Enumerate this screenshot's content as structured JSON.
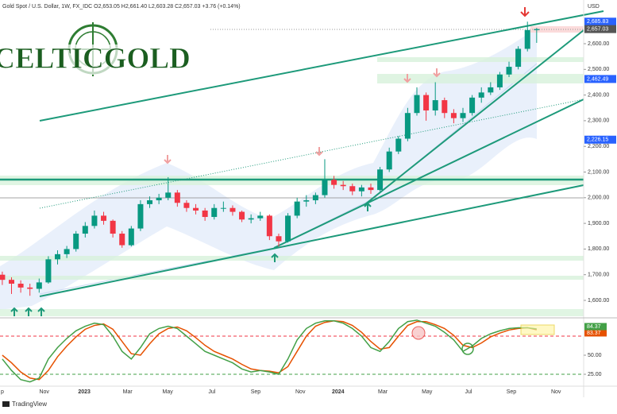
{
  "chart_data": {
    "type": "candlestick",
    "header": "Gold Spot / U.S. Dollar, 1W, FX_IDC  O2,653.05 H2,661.40 L2,603.28 C2,657.03 +3.76 (+0.14%)",
    "logo": "CELTICGOLD",
    "currency": "USD",
    "footer": "TradingView",
    "up_color": "#089981",
    "down_color": "#f23645",
    "x": [
      0,
      2,
      4,
      6,
      8,
      10,
      12,
      14,
      16,
      18,
      20,
      22,
      24,
      26,
      28,
      30,
      32,
      34,
      36,
      38,
      40,
      42,
      44,
      46,
      48,
      50,
      52,
      54,
      56,
      58,
      60,
      62,
      64,
      66,
      68,
      70,
      72,
      74,
      76,
      78,
      80,
      82,
      84,
      86,
      88,
      90,
      92,
      94,
      96,
      98,
      100,
      102,
      104,
      106,
      108,
      110,
      112,
      114,
      116
    ],
    "open": [
      1700,
      1680,
      1665,
      1650,
      1645,
      1670,
      1760,
      1780,
      1800,
      1860,
      1890,
      1930,
      1910,
      1860,
      1815,
      1880,
      1975,
      1990,
      2000,
      2020,
      1980,
      1960,
      1950,
      1925,
      1960,
      1960,
      1945,
      1915,
      1920,
      1930,
      1850,
      1830,
      1930,
      1985,
      1990,
      2010,
      2070,
      2050,
      2045,
      2025,
      2040,
      2030,
      2110,
      2180,
      2230,
      2330,
      2400,
      2340,
      2380,
      2330,
      2310,
      2330,
      2390,
      2410,
      2430,
      2480,
      2510,
      2580,
      2653.05
    ],
    "high": [
      1712,
      1690,
      1678,
      1665,
      1685,
      1772,
      1795,
      1812,
      1870,
      1905,
      1950,
      1945,
      1915,
      1870,
      1890,
      1990,
      2005,
      2015,
      2080,
      2030,
      1990,
      1975,
      1960,
      1975,
      1985,
      1970,
      1950,
      1935,
      1945,
      1935,
      1860,
      1940,
      2000,
      2010,
      2020,
      2150,
      2085,
      2065,
      2055,
      2050,
      2055,
      2120,
      2195,
      2240,
      2350,
      2430,
      2410,
      2450,
      2390,
      2345,
      2350,
      2400,
      2430,
      2450,
      2490,
      2530,
      2590,
      2685.83,
      2661.4
    ],
    "low": [
      1660,
      1625,
      1630,
      1618,
      1630,
      1665,
      1740,
      1765,
      1790,
      1845,
      1880,
      1895,
      1845,
      1805,
      1810,
      1870,
      1960,
      1975,
      1990,
      1965,
      1945,
      1935,
      1910,
      1915,
      1945,
      1930,
      1905,
      1900,
      1910,
      1835,
      1810,
      1825,
      1920,
      1965,
      1975,
      2000,
      2035,
      2030,
      2010,
      2005,
      2015,
      2025,
      2100,
      2170,
      2220,
      2320,
      2300,
      2320,
      2310,
      2290,
      2295,
      2320,
      2370,
      2400,
      2420,
      2470,
      2500,
      2570,
      2603.28
    ],
    "close": [
      1680,
      1665,
      1650,
      1645,
      1670,
      1760,
      1780,
      1800,
      1860,
      1890,
      1930,
      1910,
      1860,
      1815,
      1880,
      1975,
      1990,
      2000,
      2020,
      1980,
      1960,
      1950,
      1925,
      1960,
      1960,
      1945,
      1915,
      1920,
      1930,
      1850,
      1830,
      1930,
      1985,
      1990,
      2010,
      2070,
      2050,
      2045,
      2025,
      2040,
      2030,
      2110,
      2180,
      2230,
      2330,
      2400,
      2340,
      2380,
      2330,
      2310,
      2330,
      2390,
      2410,
      2430,
      2480,
      2510,
      2580,
      2653.27,
      2657.03
    ],
    "xlim": [
      -0.5,
      126.2
    ],
    "xticks": [
      {
        "value": 0,
        "label": "p"
      },
      {
        "value": 9.1,
        "label": "Nov"
      },
      {
        "value": 17.8,
        "label": "2023"
      },
      {
        "value": 27.2,
        "label": "Mar"
      },
      {
        "value": 35.9,
        "label": "May"
      },
      {
        "value": 45.5,
        "label": "Jul"
      },
      {
        "value": 55,
        "label": "Sep"
      },
      {
        "value": 64.7,
        "label": "Nov"
      },
      {
        "value": 72.9,
        "label": "2024"
      },
      {
        "value": 82.6,
        "label": "Mar"
      },
      {
        "value": 92.2,
        "label": "May"
      },
      {
        "value": 101.2,
        "label": "Jul"
      },
      {
        "value": 110.5,
        "label": "Sep"
      },
      {
        "value": 120.2,
        "label": "Nov"
      }
    ],
    "ylim": [
      1531.9,
      2770.3
    ],
    "yticks": [
      {
        "value": 1600,
        "label": "1,600.00"
      },
      {
        "value": 1700,
        "label": "1,700.00"
      },
      {
        "value": 1800,
        "label": "1,800.00"
      },
      {
        "value": 1900,
        "label": "1,900.00"
      },
      {
        "value": 2000,
        "label": "2,000.00"
      },
      {
        "value": 2100,
        "label": "2,100.00"
      },
      {
        "value": 2200,
        "label": "2,200.00"
      },
      {
        "value": 2300,
        "label": "2,300.00"
      },
      {
        "value": 2400,
        "label": "2,400.00"
      },
      {
        "value": 2500,
        "label": "2,500.00"
      },
      {
        "value": 2600,
        "label": "2,600.00"
      }
    ],
    "price_labels": [
      {
        "value": 2685.83,
        "label": "2,685.83",
        "color": "#2962ff"
      },
      {
        "value": 2657.03,
        "label": "2,657.03",
        "color": "#555555"
      },
      {
        "value": 2462.49,
        "label": "2,462.49",
        "color": "#2962ff"
      },
      {
        "value": 2226.15,
        "label": "2,226.15",
        "color": "#2962ff"
      }
    ],
    "oscillator": {
      "k": {
        "color": "#43a047",
        "values": [
          45,
          30,
          18,
          15,
          20,
          45,
          60,
          72,
          82,
          88,
          92,
          90,
          75,
          55,
          45,
          60,
          78,
          85,
          88,
          85,
          75,
          65,
          55,
          50,
          45,
          40,
          32,
          28,
          30,
          28,
          25,
          45,
          70,
          85,
          92,
          95,
          95,
          92,
          85,
          75,
          60,
          55,
          68,
          85,
          94,
          96,
          92,
          88,
          80,
          70,
          55,
          62,
          72,
          78,
          82,
          85,
          86,
          86,
          84.37
        ],
        "value_label": "84.37"
      },
      "d": {
        "color": "#e65100",
        "values": [
          50,
          40,
          28,
          20,
          18,
          30,
          48,
          62,
          74,
          84,
          89,
          91,
          84,
          68,
          52,
          50,
          65,
          78,
          85,
          87,
          82,
          73,
          63,
          55,
          50,
          45,
          38,
          32,
          30,
          29,
          27,
          35,
          55,
          75,
          88,
          93,
          95,
          94,
          89,
          80,
          68,
          58,
          60,
          75,
          89,
          94,
          94,
          90,
          85,
          76,
          63,
          60,
          66,
          74,
          79,
          83,
          85,
          86,
          83.37
        ],
        "value_label": "83.37"
      },
      "ylim": [
        10,
        100
      ],
      "yticks": [
        {
          "value": 50,
          "label": "50.00"
        },
        {
          "value": 25,
          "label": "25.00"
        }
      ],
      "levels": [
        {
          "value": 75,
          "color": "#f23645"
        },
        {
          "value": 25,
          "color": "#43a047"
        }
      ]
    }
  }
}
